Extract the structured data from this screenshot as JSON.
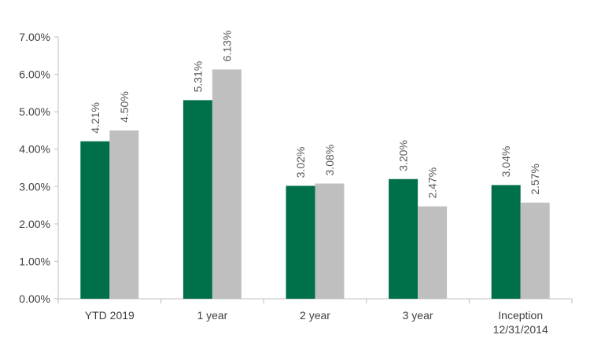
{
  "chart_data": {
    "type": "bar",
    "categories": [
      [
        "YTD 2019"
      ],
      [
        "1 year"
      ],
      [
        "2 year"
      ],
      [
        "3 year"
      ],
      [
        "Inception",
        "12/31/2014"
      ]
    ],
    "series": [
      {
        "color": "#00704A",
        "values": [
          4.21,
          5.31,
          3.02,
          3.2,
          3.04
        ],
        "labels": [
          "4.21%",
          "5.31%",
          "3.02%",
          "3.20%",
          "3.04%"
        ]
      },
      {
        "color": "#BFBFBF",
        "values": [
          4.5,
          6.13,
          3.08,
          2.47,
          2.57
        ],
        "labels": [
          "4.50%",
          "6.13%",
          "3.08%",
          "2.47%",
          "2.57%"
        ]
      }
    ],
    "ylim": [
      0,
      7
    ],
    "yticks": [
      0,
      1,
      2,
      3,
      4,
      5,
      6,
      7
    ],
    "ytick_labels": [
      "0.00%",
      "1.00%",
      "2.00%",
      "3.00%",
      "4.00%",
      "5.00%",
      "6.00%",
      "7.00%"
    ],
    "grid": false,
    "legend": "none"
  }
}
